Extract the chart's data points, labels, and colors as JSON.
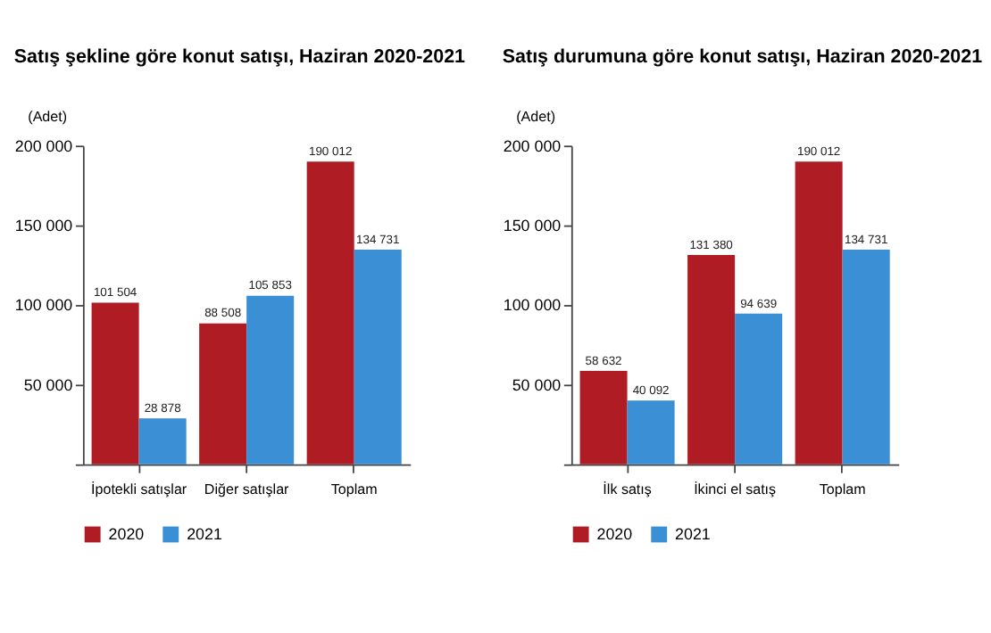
{
  "chart_data": [
    {
      "type": "bar",
      "title": "Satış şekline göre konut satışı, Haziran 2020-2021",
      "ylabel": "(Adet)",
      "categories": [
        "İpotekli satışlar",
        "Diğer satışlar",
        "Toplam"
      ],
      "series": [
        {
          "name": "2020",
          "color": "#b01c24",
          "values": [
            101504,
            88508,
            190012
          ],
          "value_labels": [
            "101 504",
            "88 508",
            "190 012"
          ]
        },
        {
          "name": "2021",
          "color": "#3b8fd4",
          "values": [
            28878,
            105853,
            134731
          ],
          "value_labels": [
            "28 878",
            "105 853",
            "134 731"
          ]
        }
      ],
      "ylim": [
        0,
        200000
      ],
      "yticks": [
        {
          "value": 0,
          "label": null
        },
        {
          "value": 50000,
          "label": "50 000"
        },
        {
          "value": 100000,
          "label": "100 000"
        },
        {
          "value": 150000,
          "label": "150 000"
        },
        {
          "value": 200000,
          "label": "200 000"
        }
      ],
      "grid": false,
      "legend": "bottom"
    },
    {
      "type": "bar",
      "title": "Satış durumuna göre konut satışı, Haziran 2020-2021",
      "ylabel": "(Adet)",
      "categories": [
        "İlk satış",
        "İkinci el satış",
        "Toplam"
      ],
      "series": [
        {
          "name": "2020",
          "color": "#b01c24",
          "values": [
            58632,
            131380,
            190012
          ],
          "value_labels": [
            "58 632",
            "131 380",
            "190 012"
          ]
        },
        {
          "name": "2021",
          "color": "#3b8fd4",
          "values": [
            40092,
            94639,
            134731
          ],
          "value_labels": [
            "40 092",
            "94 639",
            "134 731"
          ]
        }
      ],
      "ylim": [
        0,
        200000
      ],
      "yticks": [
        {
          "value": 0,
          "label": null
        },
        {
          "value": 50000,
          "label": "50 000"
        },
        {
          "value": 100000,
          "label": "100 000"
        },
        {
          "value": 150000,
          "label": "150 000"
        },
        {
          "value": 200000,
          "label": "200 000"
        }
      ],
      "grid": false,
      "legend": "bottom"
    }
  ]
}
